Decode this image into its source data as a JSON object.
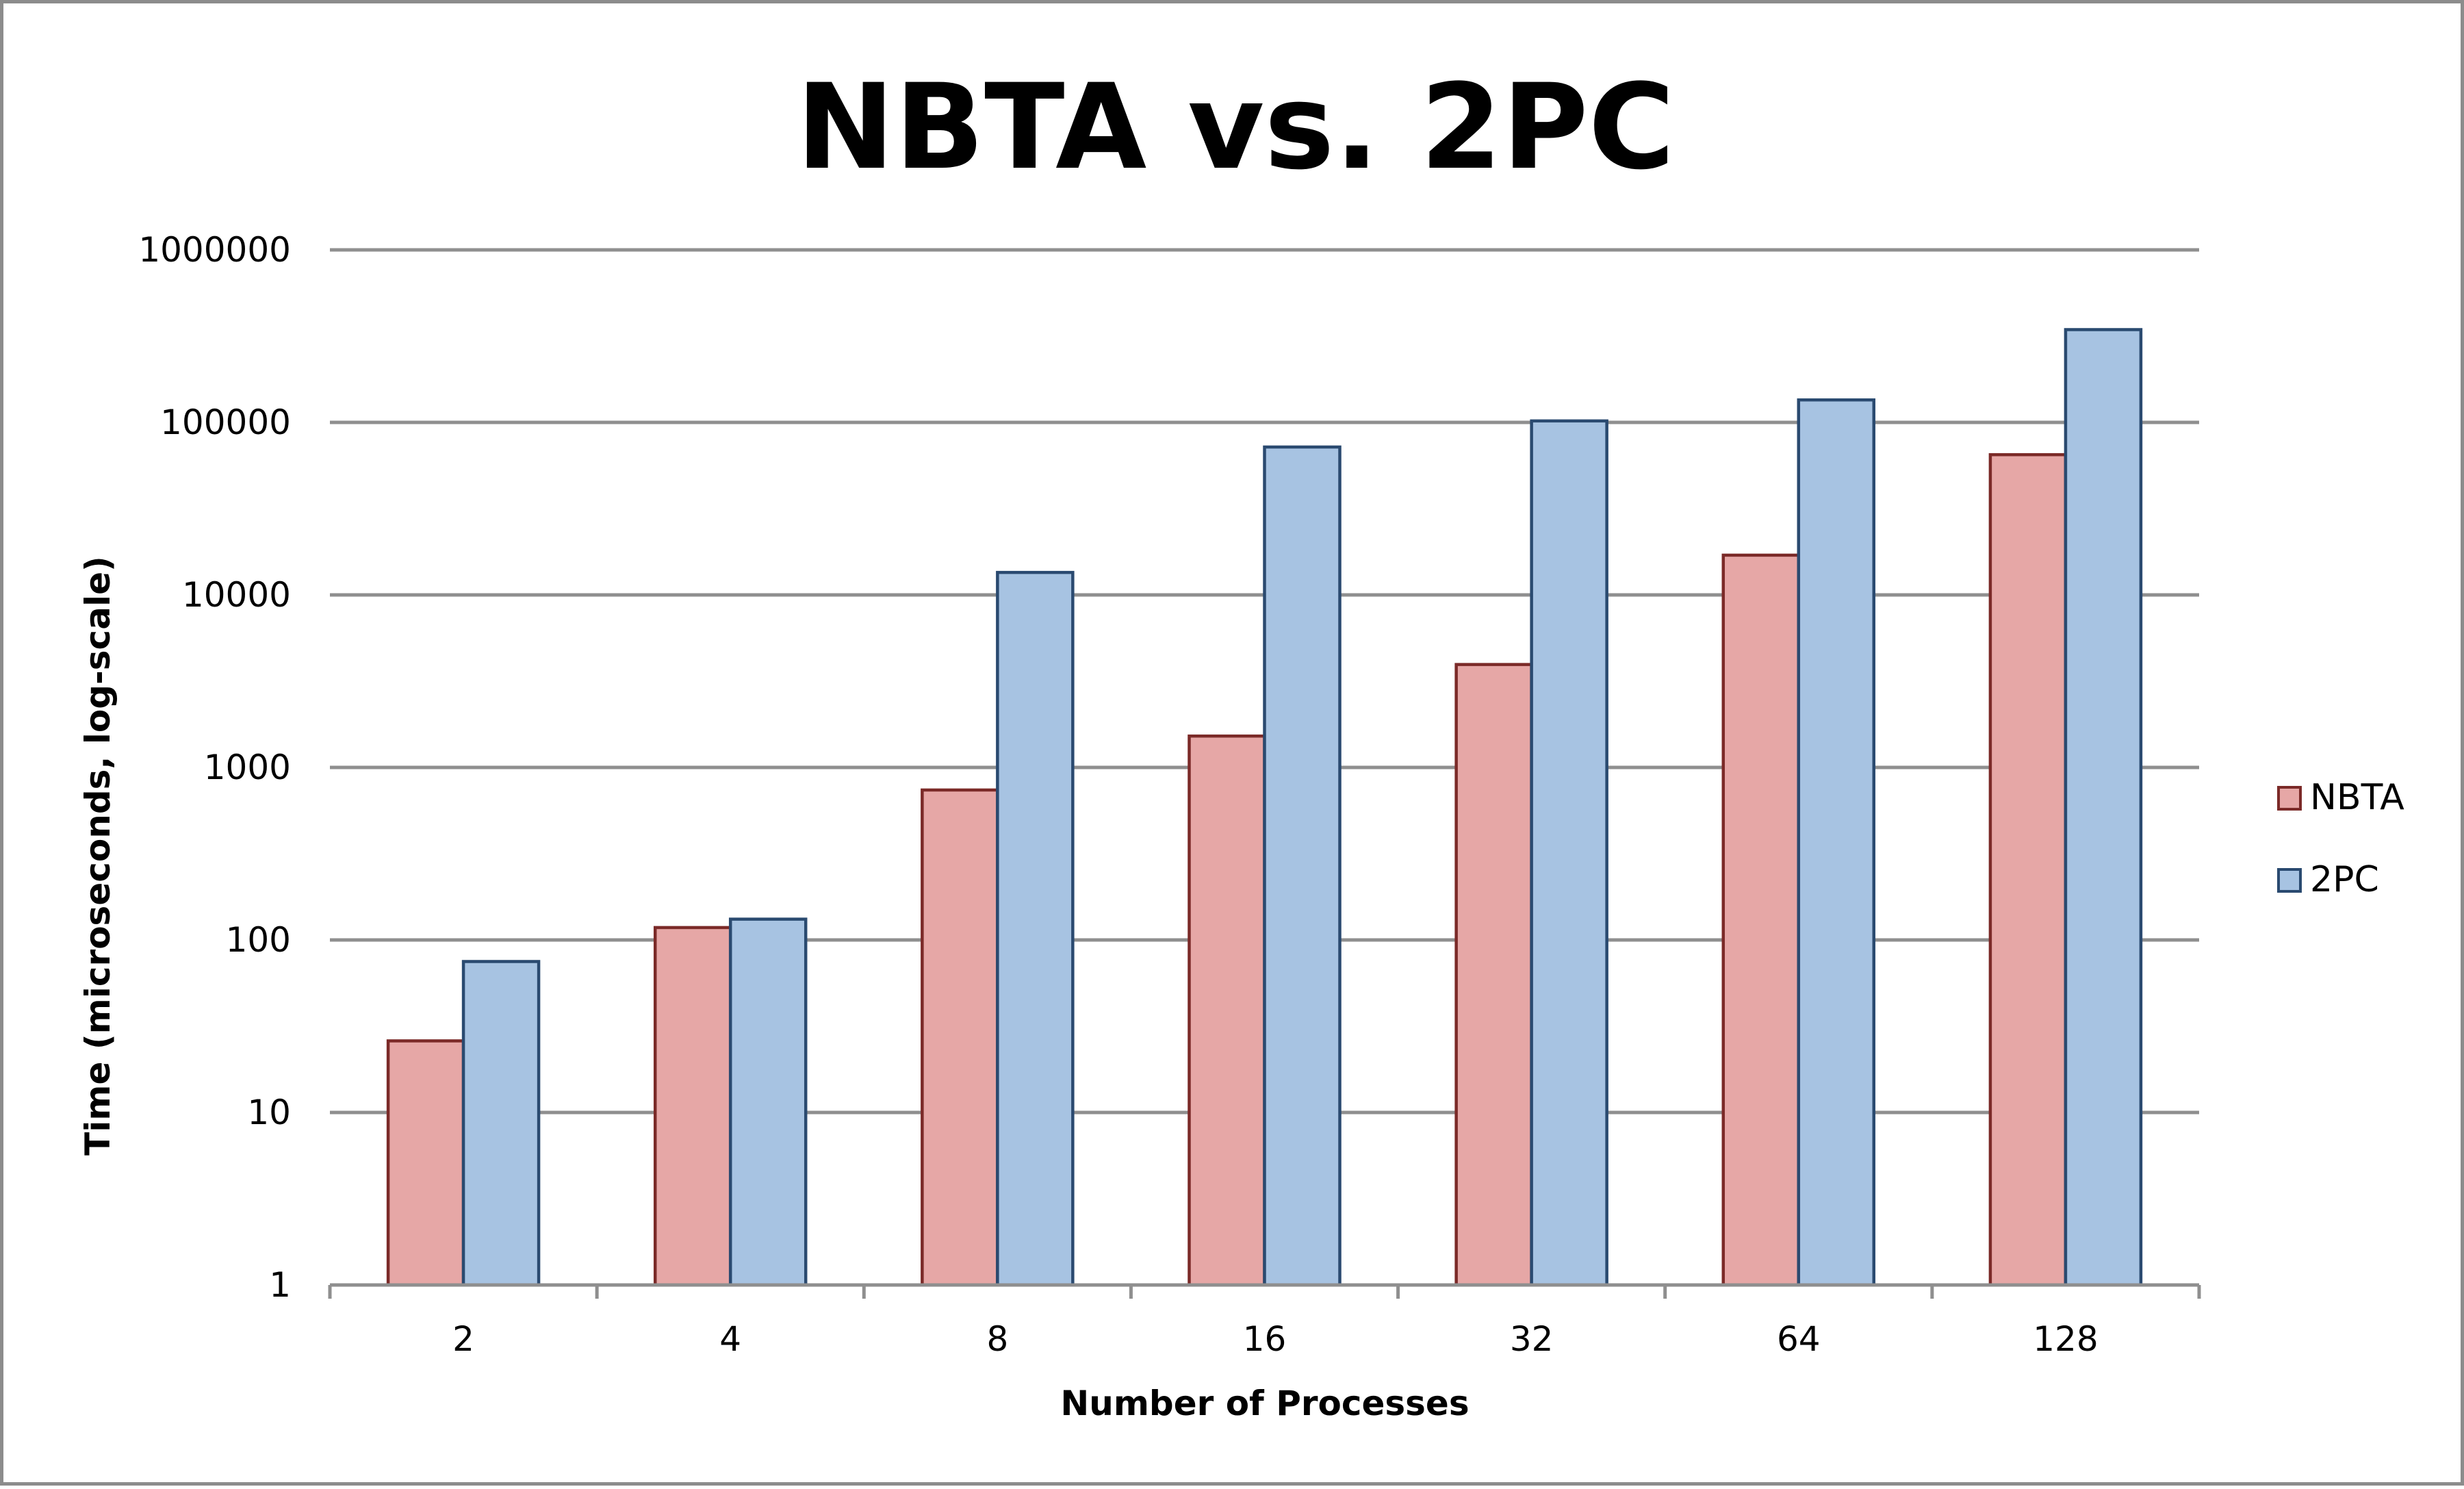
{
  "chart_data": {
    "type": "bar",
    "title": "NBTA vs. 2PC",
    "xlabel": "Number of Processes",
    "ylabel": "Time (microseconds, log-scale)",
    "yscale": "log",
    "ylim": [
      1,
      1000000
    ],
    "yticks": [
      "1",
      "10",
      "100",
      "1000",
      "10000",
      "100000",
      "1000000"
    ],
    "categories": [
      "2",
      "4",
      "8",
      "16",
      "32",
      "64",
      "128"
    ],
    "series": [
      {
        "name": "NBTA",
        "color": "#e6a7a6",
        "edge_color": "#7b2a28",
        "values": [
          26,
          118,
          740,
          1520,
          3950,
          17000,
          65000
        ]
      },
      {
        "name": "2PC",
        "color": "#a7c3e2",
        "edge_color": "#2a4a70",
        "values": [
          75,
          132,
          13500,
          72000,
          102000,
          135000,
          345000
        ]
      }
    ],
    "grid": true,
    "legend_position": "right"
  }
}
